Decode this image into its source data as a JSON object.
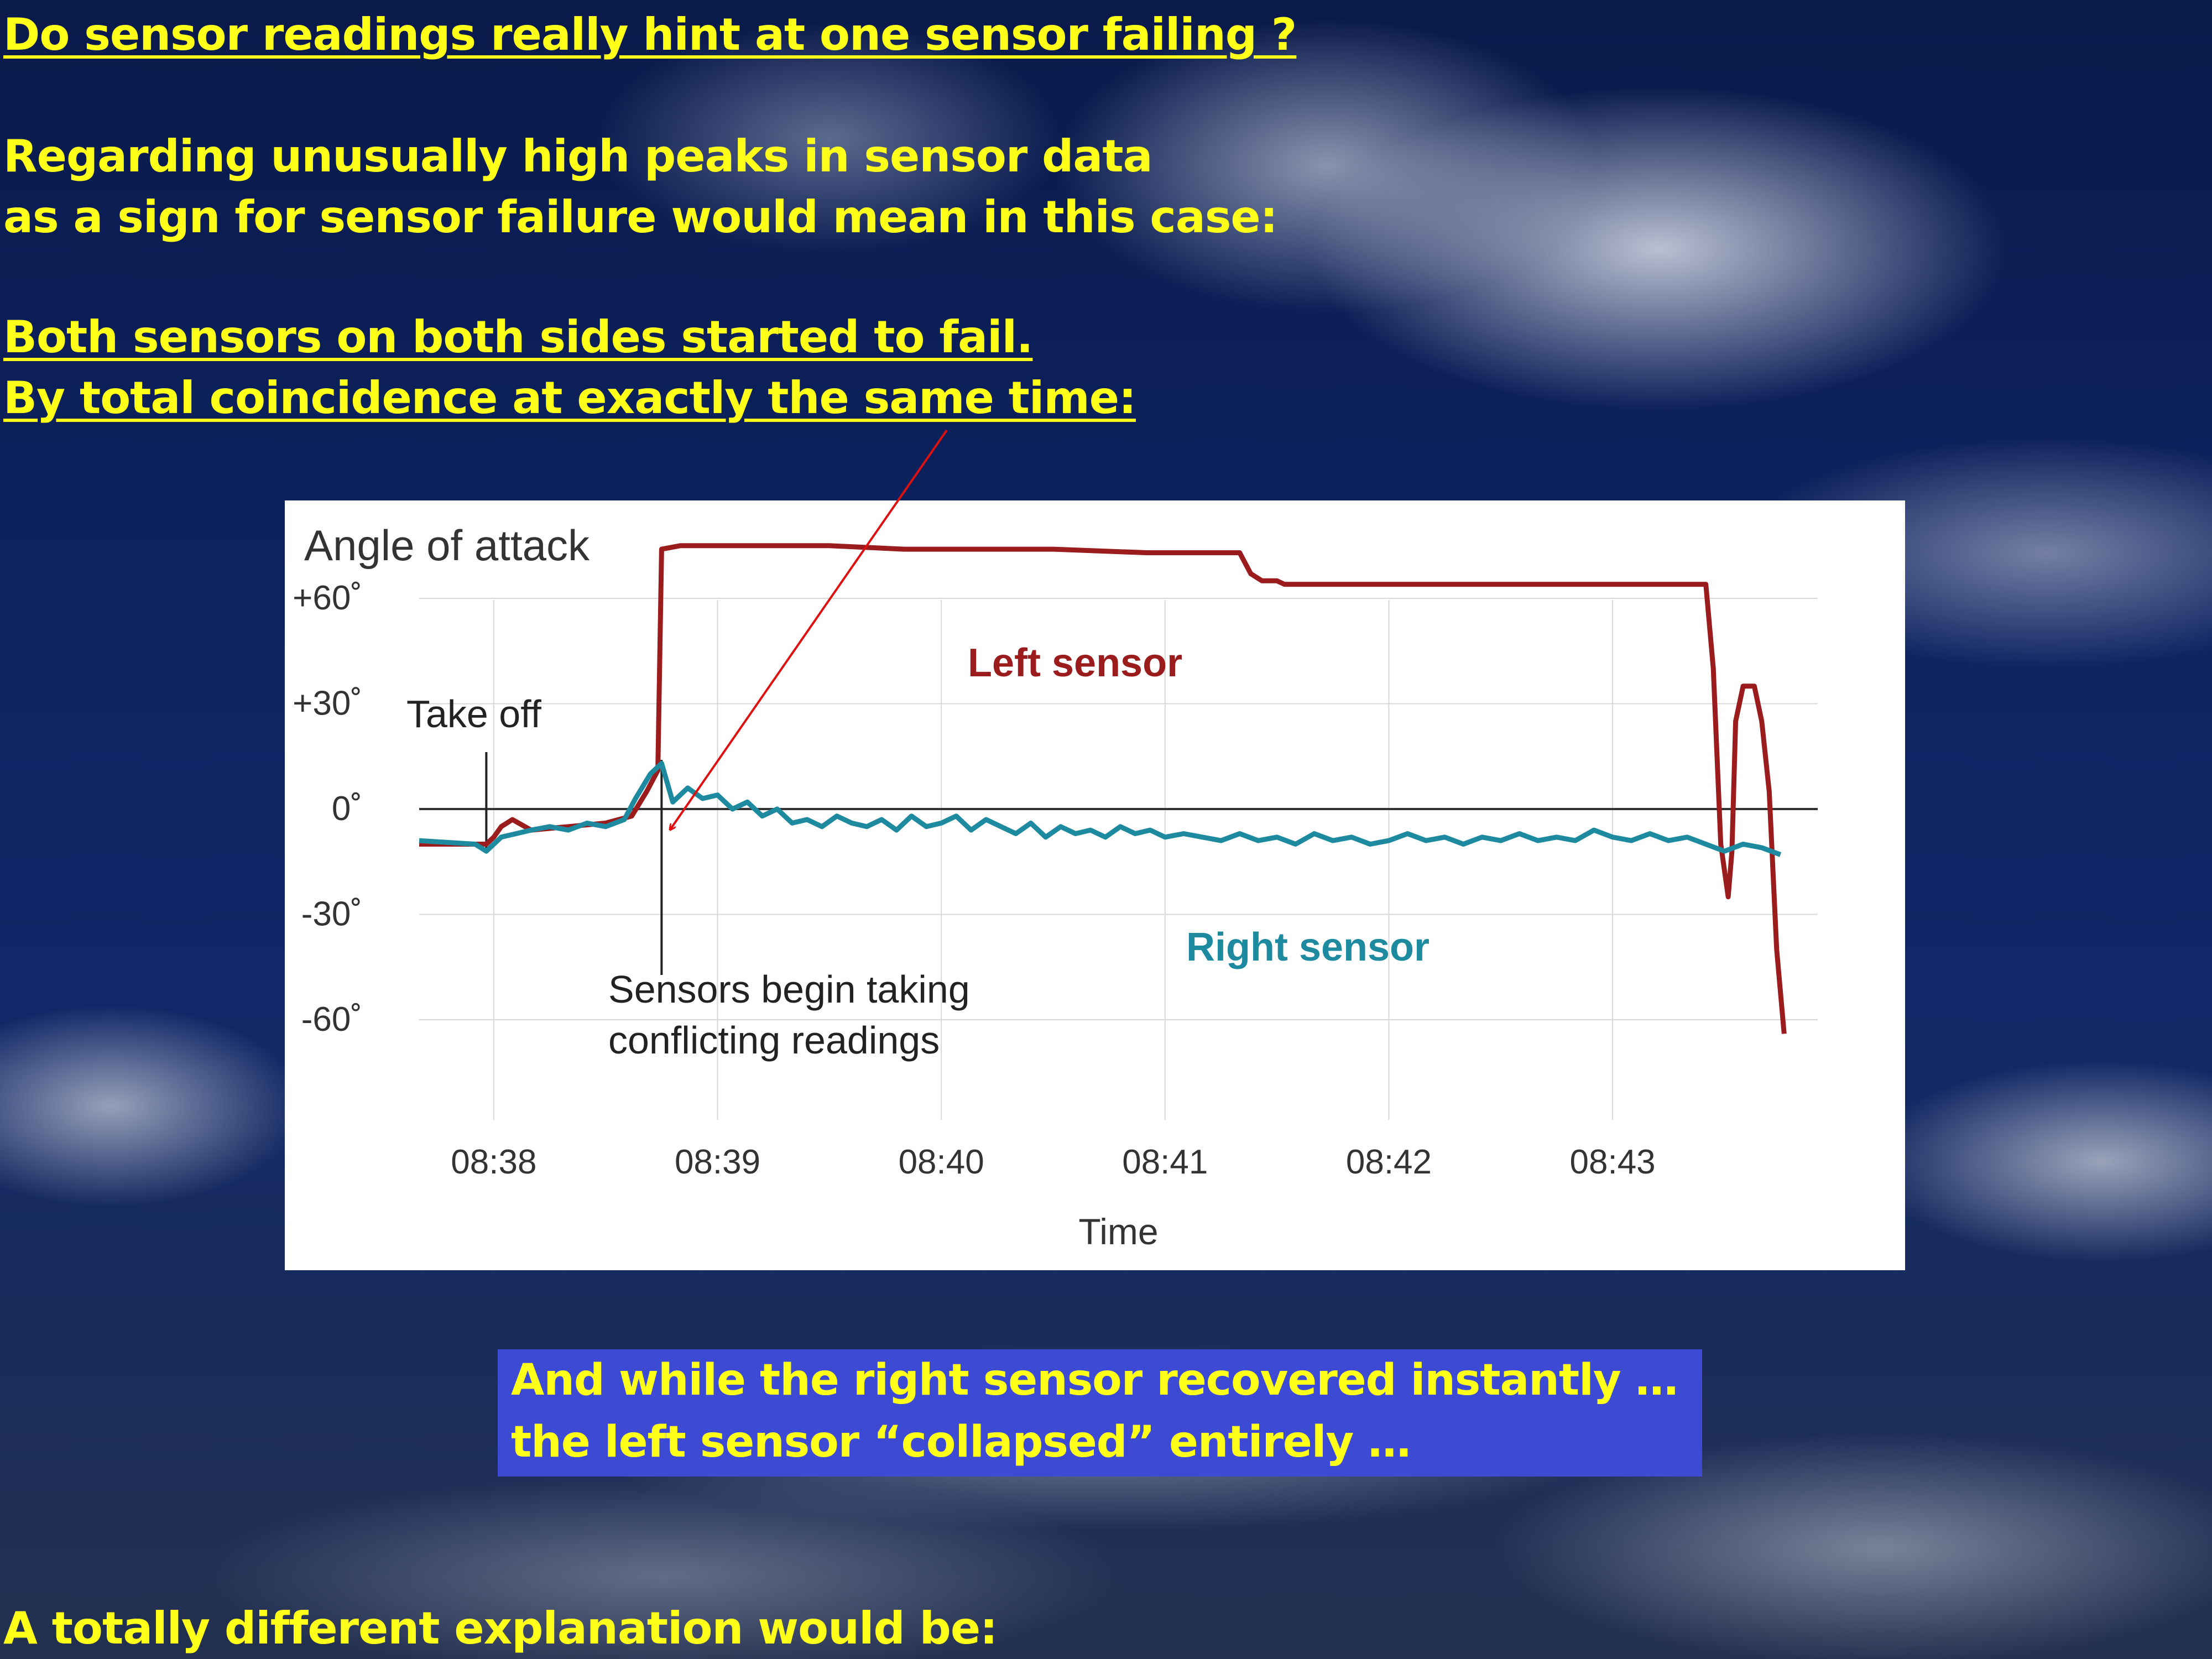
{
  "text": {
    "heading": "Do sensor readings really hint at one sensor failing ?",
    "para1_line1": "Regarding unusually high peaks in sensor data",
    "para1_line2": "as a sign for sensor failure would mean in this case:",
    "para2_line1": "Both sensors on both sides started to fail.",
    "para2_line2": "By total coincidence at exactly the same time:",
    "callout_line1": "And while the right sensor recovered instantly …",
    "callout_line2": "the left sensor “collapsed” entirely …",
    "bottom_line": "A totally different explanation would be:"
  },
  "colors": {
    "text": "#ffff1a",
    "callout_bg": "#3d4bd4",
    "arrow": "#dd1111"
  },
  "chart_data": {
    "type": "line",
    "title": "Angle of attack",
    "xlabel": "Time",
    "ylabel": "",
    "xlim": [
      "08:37:40",
      "08:43:55"
    ],
    "ylim": [
      -70,
      80
    ],
    "x_ticks": [
      "08:38",
      "08:39",
      "08:40",
      "08:41",
      "08:42",
      "08:43"
    ],
    "y_ticks": [
      {
        "value": 60,
        "label": "+60˚"
      },
      {
        "value": 30,
        "label": "+30˚"
      },
      {
        "value": 0,
        "label": "0˚"
      },
      {
        "value": -30,
        "label": "-30˚"
      },
      {
        "value": -60,
        "label": "-60˚"
      }
    ],
    "grid": true,
    "legend": "inline labels",
    "series": [
      {
        "name": "Left sensor",
        "color": "#9b1c1c",
        "points": [
          [
            "08:37:40",
            -10
          ],
          [
            "08:37:58",
            -10
          ],
          [
            "08:38:00",
            -8
          ],
          [
            "08:38:02",
            -5
          ],
          [
            "08:38:05",
            -3
          ],
          [
            "08:38:10",
            -6
          ],
          [
            "08:38:20",
            -5
          ],
          [
            "08:38:30",
            -4
          ],
          [
            "08:38:37",
            -2
          ],
          [
            "08:38:41",
            5
          ],
          [
            "08:38:44",
            11
          ],
          [
            "08:38:45",
            74
          ],
          [
            "08:38:50",
            75
          ],
          [
            "08:39:30",
            75
          ],
          [
            "08:39:50",
            74
          ],
          [
            "08:40:00",
            74
          ],
          [
            "08:40:30",
            74
          ],
          [
            "08:40:55",
            73
          ],
          [
            "08:41:00",
            73
          ],
          [
            "08:41:20",
            73
          ],
          [
            "08:41:23",
            67
          ],
          [
            "08:41:26",
            65
          ],
          [
            "08:41:30",
            65
          ],
          [
            "08:41:32",
            64
          ],
          [
            "08:41:50",
            64
          ],
          [
            "08:42:00",
            64
          ],
          [
            "08:42:30",
            64
          ],
          [
            "08:43:00",
            64
          ],
          [
            "08:43:15",
            64
          ],
          [
            "08:43:25",
            64
          ],
          [
            "08:43:27",
            40
          ],
          [
            "08:43:29",
            -10
          ],
          [
            "08:43:31",
            -25
          ],
          [
            "08:43:32",
            -12
          ],
          [
            "08:43:33",
            25
          ],
          [
            "08:43:35",
            35
          ],
          [
            "08:43:38",
            35
          ],
          [
            "08:43:40",
            25
          ],
          [
            "08:43:42",
            5
          ],
          [
            "08:43:44",
            -40
          ],
          [
            "08:43:46",
            -64
          ]
        ]
      },
      {
        "name": "Right sensor",
        "color": "#1e8aa0",
        "points": [
          [
            "08:37:40",
            -9
          ],
          [
            "08:37:55",
            -10
          ],
          [
            "08:37:58",
            -12
          ],
          [
            "08:38:02",
            -8
          ],
          [
            "08:38:06",
            -7
          ],
          [
            "08:38:10",
            -6
          ],
          [
            "08:38:15",
            -5
          ],
          [
            "08:38:20",
            -6
          ],
          [
            "08:38:25",
            -4
          ],
          [
            "08:38:30",
            -5
          ],
          [
            "08:38:35",
            -3
          ],
          [
            "08:38:38",
            3
          ],
          [
            "08:38:42",
            10
          ],
          [
            "08:38:45",
            13
          ],
          [
            "08:38:48",
            2
          ],
          [
            "08:38:52",
            6
          ],
          [
            "08:38:56",
            3
          ],
          [
            "08:39:00",
            4
          ],
          [
            "08:39:04",
            0
          ],
          [
            "08:39:08",
            2
          ],
          [
            "08:39:12",
            -2
          ],
          [
            "08:39:16",
            0
          ],
          [
            "08:39:20",
            -4
          ],
          [
            "08:39:24",
            -3
          ],
          [
            "08:39:28",
            -5
          ],
          [
            "08:39:32",
            -2
          ],
          [
            "08:39:36",
            -4
          ],
          [
            "08:39:40",
            -5
          ],
          [
            "08:39:44",
            -3
          ],
          [
            "08:39:48",
            -6
          ],
          [
            "08:39:52",
            -2
          ],
          [
            "08:39:56",
            -5
          ],
          [
            "08:40:00",
            -4
          ],
          [
            "08:40:04",
            -2
          ],
          [
            "08:40:08",
            -6
          ],
          [
            "08:40:12",
            -3
          ],
          [
            "08:40:16",
            -5
          ],
          [
            "08:40:20",
            -7
          ],
          [
            "08:40:24",
            -4
          ],
          [
            "08:40:28",
            -8
          ],
          [
            "08:40:32",
            -5
          ],
          [
            "08:40:36",
            -7
          ],
          [
            "08:40:40",
            -6
          ],
          [
            "08:40:44",
            -8
          ],
          [
            "08:40:48",
            -5
          ],
          [
            "08:40:52",
            -7
          ],
          [
            "08:40:56",
            -6
          ],
          [
            "08:41:00",
            -8
          ],
          [
            "08:41:05",
            -7
          ],
          [
            "08:41:10",
            -8
          ],
          [
            "08:41:15",
            -9
          ],
          [
            "08:41:20",
            -7
          ],
          [
            "08:41:25",
            -9
          ],
          [
            "08:41:30",
            -8
          ],
          [
            "08:41:35",
            -10
          ],
          [
            "08:41:40",
            -7
          ],
          [
            "08:41:45",
            -9
          ],
          [
            "08:41:50",
            -8
          ],
          [
            "08:41:55",
            -10
          ],
          [
            "08:42:00",
            -9
          ],
          [
            "08:42:05",
            -7
          ],
          [
            "08:42:10",
            -9
          ],
          [
            "08:42:15",
            -8
          ],
          [
            "08:42:20",
            -10
          ],
          [
            "08:42:25",
            -8
          ],
          [
            "08:42:30",
            -9
          ],
          [
            "08:42:35",
            -7
          ],
          [
            "08:42:40",
            -9
          ],
          [
            "08:42:45",
            -8
          ],
          [
            "08:42:50",
            -9
          ],
          [
            "08:42:55",
            -6
          ],
          [
            "08:43:00",
            -8
          ],
          [
            "08:43:05",
            -9
          ],
          [
            "08:43:10",
            -7
          ],
          [
            "08:43:15",
            -9
          ],
          [
            "08:43:20",
            -8
          ],
          [
            "08:43:25",
            -10
          ],
          [
            "08:43:30",
            -12
          ],
          [
            "08:43:35",
            -10
          ],
          [
            "08:43:40",
            -11
          ],
          [
            "08:43:45",
            -13
          ]
        ]
      }
    ],
    "annotations": [
      {
        "text": "Take off",
        "x": "08:37:58"
      },
      {
        "text_lines": [
          "Sensors begin taking",
          "conflicting readings"
        ],
        "x": "08:38:45"
      }
    ]
  }
}
